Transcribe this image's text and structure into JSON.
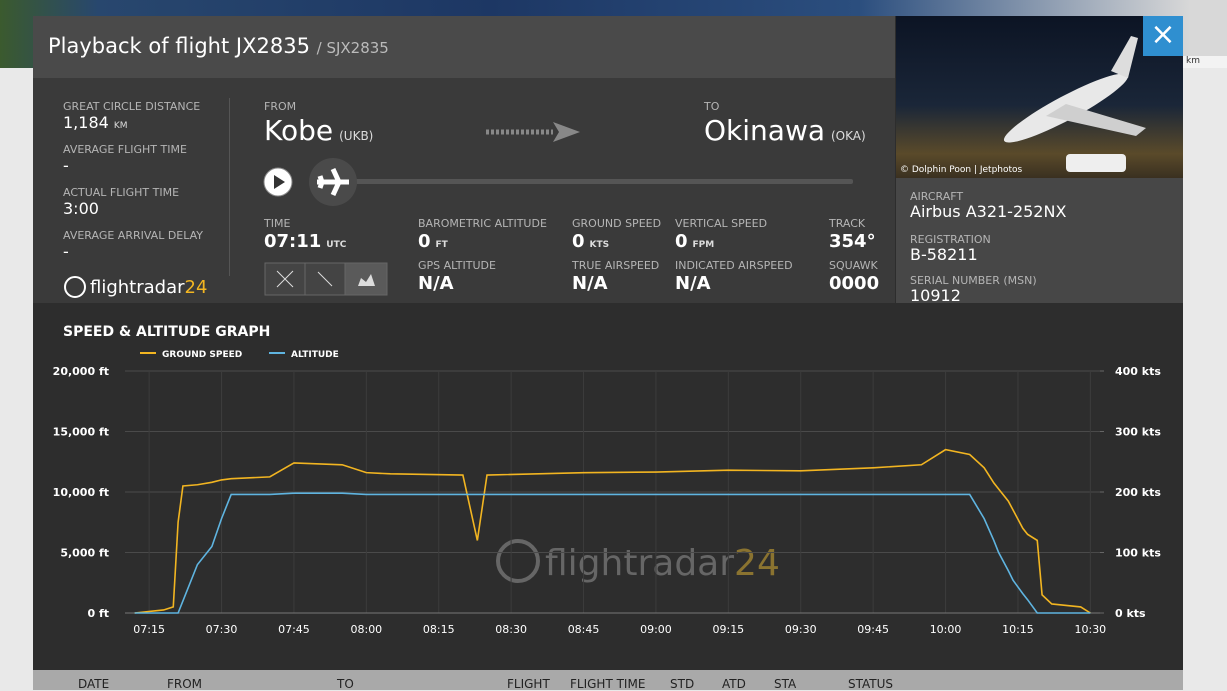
{
  "header": {
    "title": "Playback of flight JX2835",
    "subtitle": "/ SJX2835"
  },
  "map_scale": "km",
  "photo_credit": "© Dolphin Poon | Jetphotos",
  "stats": [
    {
      "label": "GREAT CIRCLE DISTANCE",
      "value": "1,184",
      "unit": "KM"
    },
    {
      "label": "AVERAGE FLIGHT TIME",
      "value": "-"
    },
    {
      "label": "ACTUAL FLIGHT TIME",
      "value": "3:00"
    },
    {
      "label": "AVERAGE ARRIVAL DELAY",
      "value": "-"
    }
  ],
  "logo": {
    "name": "flightradar",
    "suffix": "24"
  },
  "route": {
    "from": {
      "label": "FROM",
      "city": "Kobe",
      "code": "(UKB)"
    },
    "to": {
      "label": "TO",
      "city": "Okinawa",
      "code": "(OKA)"
    }
  },
  "playback": [
    {
      "label": "TIME",
      "value": "07:11",
      "unit": "UTC"
    },
    {
      "label": "BAROMETRIC ALTITUDE",
      "value": "0",
      "unit": "FT"
    },
    {
      "label": "GROUND SPEED",
      "value": "0",
      "unit": "KTS"
    },
    {
      "label": "VERTICAL SPEED",
      "value": "0",
      "unit": "FPM"
    },
    {
      "label": "TRACK",
      "value": "354°"
    },
    {
      "label": "GPS ALTITUDE",
      "value": "N/A"
    },
    {
      "label": "TRUE AIRSPEED",
      "value": "N/A"
    },
    {
      "label": "INDICATED AIRSPEED",
      "value": "N/A"
    },
    {
      "label": "SQUAWK",
      "value": "0000"
    }
  ],
  "aircraft": [
    {
      "label": "AIRCRAFT",
      "value": "Airbus A321-252NX"
    },
    {
      "label": "REGISTRATION",
      "value": "B-58211"
    },
    {
      "label": "SERIAL NUMBER (MSN)",
      "value": "10912"
    }
  ],
  "chart_data": {
    "type": "line",
    "title": "SPEED & ALTITUDE GRAPH",
    "watermark": {
      "name": "flightradar",
      "suffix": "24"
    },
    "x": [
      "07:12",
      "07:18",
      "07:20",
      "07:21",
      "07:22",
      "07:25",
      "07:28",
      "07:30",
      "07:32",
      "07:40",
      "07:45",
      "07:55",
      "08:00",
      "08:05",
      "08:20",
      "08:23",
      "08:25",
      "08:45",
      "09:00",
      "09:15",
      "09:30",
      "09:45",
      "09:55",
      "10:00",
      "10:05",
      "10:08",
      "10:10",
      "10:11",
      "10:13",
      "10:14",
      "10:16",
      "10:17",
      "10:19",
      "10:20",
      "10:22",
      "10:28",
      "10:30"
    ],
    "series": [
      {
        "name": "GROUND SPEED",
        "color": "#f2b521",
        "axis": "y2",
        "values": [
          0,
          5,
          10,
          150,
          210,
          212,
          216,
          220,
          222,
          225,
          248,
          245,
          232,
          230,
          228,
          120,
          228,
          232,
          233,
          236,
          235,
          240,
          245,
          270,
          262,
          240,
          215,
          205,
          185,
          170,
          140,
          130,
          120,
          30,
          15,
          10,
          0
        ]
      },
      {
        "name": "ALTITUDE",
        "color": "#5fb4e0",
        "values": [
          0,
          0,
          0,
          0,
          1000,
          4000,
          5500,
          7800,
          9800,
          9800,
          9900,
          9900,
          9800,
          9800,
          9800,
          9800,
          9800,
          9800,
          9800,
          9800,
          9800,
          9800,
          9800,
          9800,
          9800,
          7800,
          6000,
          5000,
          3500,
          2700,
          1600,
          1100,
          0,
          0,
          0,
          0,
          0
        ]
      }
    ],
    "xlim": [
      "07:10",
      "10:32"
    ],
    "xticks": [
      "07:15",
      "07:30",
      "07:45",
      "08:00",
      "08:15",
      "08:30",
      "08:45",
      "09:00",
      "09:15",
      "09:30",
      "09:45",
      "10:00",
      "10:15",
      "10:30"
    ],
    "ylim": [
      0,
      20000
    ],
    "yticks": [
      {
        "value": 0,
        "label": "0 ft"
      },
      {
        "value": 5000,
        "label": "5,000 ft"
      },
      {
        "value": 10000,
        "label": "10,000 ft"
      },
      {
        "value": 15000,
        "label": "15,000 ft"
      },
      {
        "value": 20000,
        "label": "20,000 ft"
      }
    ],
    "y2lim": [
      0,
      400
    ],
    "y2ticks": [
      {
        "value": 0,
        "label": "0 kts"
      },
      {
        "value": 100,
        "label": "100 kts"
      },
      {
        "value": 200,
        "label": "200 kts"
      },
      {
        "value": 300,
        "label": "300 kts"
      },
      {
        "value": 400,
        "label": "400 kts"
      }
    ],
    "grid": true
  },
  "table_headers": [
    "DATE",
    "FROM",
    "TO",
    "FLIGHT",
    "FLIGHT TIME",
    "STD",
    "ATD",
    "STA",
    "STATUS"
  ]
}
